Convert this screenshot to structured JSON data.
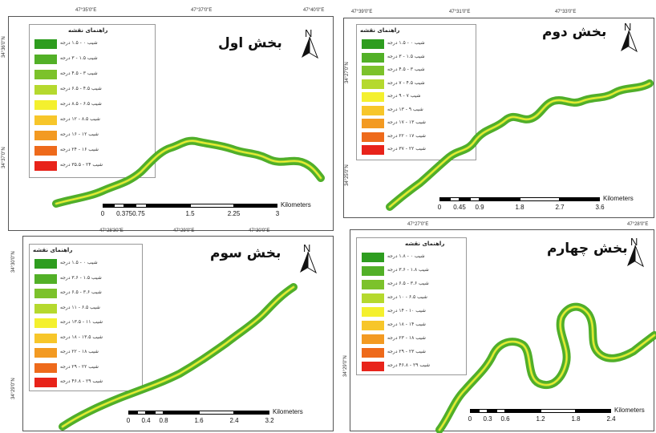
{
  "colors": {
    "c1": "#2e9d1f",
    "c2": "#52b027",
    "c3": "#7cc22b",
    "c4": "#b5d92e",
    "c5": "#f4f02e",
    "c6": "#f7c62a",
    "c7": "#f39a22",
    "c8": "#ee6a1b",
    "c9": "#e8231a",
    "river_main": "#4fae2a",
    "river_light": "#b9dc3a"
  },
  "panels": [
    {
      "id": "p1",
      "title": "بخش اول",
      "legend_head": "راهنمای نقشه",
      "coords_top": [
        "47°35'0\"E",
        "47°37'0\"E",
        "47°40'0\"E"
      ],
      "coords_left": [
        "34°36'0\"N",
        "34°37'0\"N"
      ],
      "legend": [
        "شیب ۰ - ۱.۵ درجه",
        "شیب ۱.۵ - ۳ درجه",
        "شیب ۳ - ۴.۵ درجه",
        "شیب ۴.۵ - ۶.۵ درجه",
        "شیب ۶.۵ - ۸.۵ درجه",
        "شیب ۸.۵ - ۱۲ درجه",
        "شیب ۱۲ - ۱۶ درجه",
        "شیب ۱۶ - ۲۴ درجه",
        "شیب ۲۴ - ۳۵.۵ درجه"
      ],
      "scale_labels": [
        "0",
        "0.3750.75",
        "1.5",
        "2.25",
        "3"
      ],
      "scale_unit": "Kilometers"
    },
    {
      "id": "p2",
      "title": "بخش دوم",
      "legend_head": "راهنمای نقشه",
      "coords_top": [
        "47°39'0\"E",
        "47°31'0\"E",
        "47°33'0\"E"
      ],
      "coords_left": [
        "34°27'0\"N",
        "34°25'0\"N"
      ],
      "legend": [
        "شیب ۰ - ۱.۵ درجه",
        "شیب ۱.۵ - ۳ درجه",
        "شیب ۳ - ۴.۵ درجه",
        "شیب ۴.۵ - ۷ درجه",
        "شیب ۷ - ۹ درجه",
        "شیب ۹ - ۱۳ درجه",
        "شیب ۱۳ - ۱۷ درجه",
        "شیب ۱۷ - ۲۲ درجه",
        "شیب ۲۲ - ۳۷ درجه"
      ],
      "scale_labels": [
        "0",
        "0.45",
        "0.9",
        "1.8",
        "2.7",
        "3.6"
      ],
      "scale_unit": "Kilometers"
    },
    {
      "id": "p3",
      "title": "بخش سوم",
      "legend_head": "راهنمای نقشه",
      "coords_top": [
        "47°28'30\"E",
        "47°29'0\"E",
        "47°30'0\"E"
      ],
      "coords_left": [
        "34°30'0\"N",
        "34°29'0\"N"
      ],
      "legend": [
        "شیب ۰ - ۱.۵ درجه",
        "شیب ۱.۵ - ۳.۶ درجه",
        "شیب ۳.۶ - ۶.۵ درجه",
        "شیب ۶.۵ - ۱۱ درجه",
        "شیب ۱۱ - ۱۳.۵ درجه",
        "شیب ۱۳.۵ - ۱۸ درجه",
        "شیب ۱۸ - ۲۲ درجه",
        "شیب ۲۲ - ۲۹ درجه",
        "شیب ۲۹ - ۴۶.۸ درجه"
      ],
      "scale_labels": [
        "0",
        "0.4",
        "0.8",
        "1.6",
        "2.4",
        "3.2"
      ],
      "scale_unit": "Kilometers"
    },
    {
      "id": "p4",
      "title": "بخش چهارم",
      "legend_head": "راهنمای نقشه",
      "coords_top": [
        "47°27'0\"E",
        "47°28'0\"E"
      ],
      "coords_left": [
        "34°29'0\"N"
      ],
      "legend": [
        "شیب ۰ - ۱.۸ درجه",
        "شیب ۱.۸ - ۳.۶ درجه",
        "شیب ۳.۶ - ۶.۵ درجه",
        "شیب ۶.۵ - ۱۰ درجه",
        "شیب ۱۰ - ۱۴ درجه",
        "شیب ۱۴ - ۱۸ درجه",
        "شیب ۱۸ - ۲۳ درجه",
        "شیب ۲۳ - ۲۹ درجه",
        "شیب ۲۹ - ۴۶.۸ درجه"
      ],
      "scale_labels": [
        "0",
        "0.3",
        "0.6",
        "1.2",
        "1.8",
        "2.4"
      ],
      "scale_unit": "Kilometers"
    }
  ]
}
